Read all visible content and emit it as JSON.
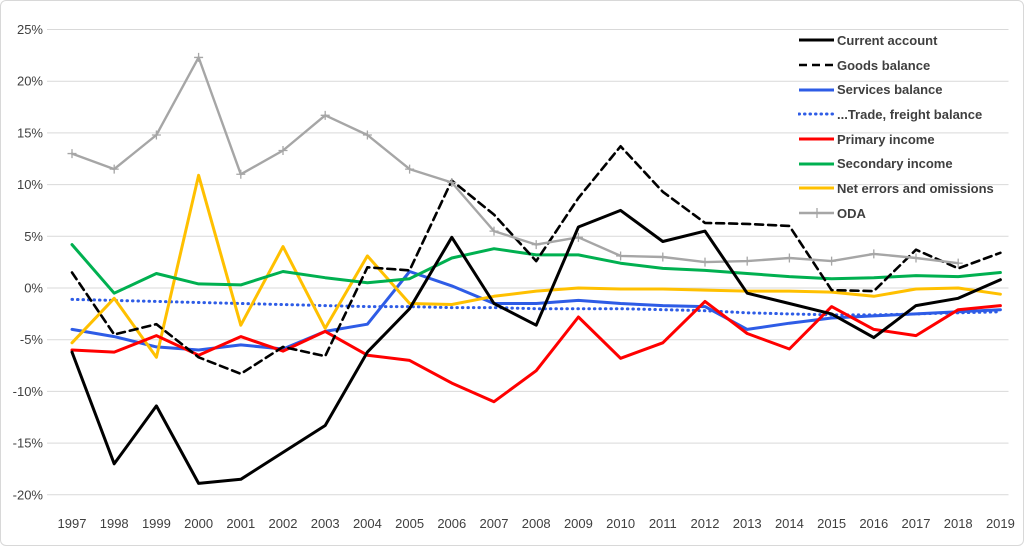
{
  "chart_data": {
    "type": "line",
    "title": "",
    "xlabel": "",
    "ylabel": "",
    "grid": true,
    "legend_position": "top-right",
    "ylim": [
      -20,
      25
    ],
    "y_tick_labels": [
      "25%",
      "20%",
      "15%",
      "10%",
      "5%",
      "0%",
      "-5%",
      "-10%",
      "-15%",
      "-20%"
    ],
    "y_tick_values": [
      25,
      20,
      15,
      10,
      5,
      0,
      -5,
      -10,
      -15,
      -20
    ],
    "x": [
      1997,
      1998,
      1999,
      2000,
      2001,
      2002,
      2003,
      2004,
      2005,
      2006,
      2007,
      2008,
      2009,
      2010,
      2011,
      2012,
      2013,
      2014,
      2015,
      2016,
      2017,
      2018,
      2019
    ],
    "series": [
      {
        "name": "Current account",
        "color": "#000000",
        "style": "solid",
        "width": 3,
        "marker": "none",
        "values": [
          -6.2,
          -17.0,
          -11.4,
          -18.9,
          -18.5,
          -15.9,
          -13.3,
          -6.2,
          -2.0,
          4.9,
          -1.5,
          -3.6,
          5.9,
          7.5,
          4.5,
          5.5,
          -0.5,
          -1.5,
          -2.5,
          -4.8,
          -1.7,
          -1.0,
          0.8
        ]
      },
      {
        "name": "Goods balance",
        "color": "#000000",
        "style": "dashed",
        "width": 2.6,
        "marker": "none",
        "values": [
          1.5,
          -4.5,
          -3.5,
          -6.7,
          -8.3,
          -5.7,
          -6.6,
          2.0,
          1.7,
          10.4,
          7.1,
          2.6,
          8.7,
          13.7,
          9.3,
          6.3,
          6.2,
          6.0,
          -0.2,
          -0.3,
          3.7,
          1.9,
          3.4
        ]
      },
      {
        "name": "Services balance",
        "color": "#2e5ce6",
        "style": "solid",
        "width": 3,
        "marker": "none",
        "values": [
          -4.0,
          -4.7,
          -5.7,
          -6.0,
          -5.5,
          -5.9,
          -4.2,
          -3.5,
          1.6,
          0.2,
          -1.5,
          -1.5,
          -1.2,
          -1.5,
          -1.7,
          -1.8,
          -4.0,
          -3.4,
          -2.9,
          -2.7,
          -2.5,
          -2.3,
          -2.1
        ]
      },
      {
        "name": "...Trade, freight balance",
        "color": "#2e5ce6",
        "style": "dotted",
        "width": 3,
        "marker": "none",
        "values": [
          -1.1,
          -1.2,
          -1.3,
          -1.4,
          -1.5,
          -1.6,
          -1.7,
          -1.8,
          -1.8,
          -1.9,
          -1.9,
          -2.0,
          -2.0,
          -2.0,
          -2.1,
          -2.2,
          -2.4,
          -2.5,
          -2.6,
          -2.6,
          -2.5,
          -2.4,
          -2.3
        ]
      },
      {
        "name": "Primary income",
        "color": "#ff0000",
        "style": "solid",
        "width": 3,
        "marker": "none",
        "values": [
          -6.0,
          -6.2,
          -4.6,
          -6.5,
          -4.7,
          -6.1,
          -4.2,
          -6.5,
          -7.0,
          -9.2,
          -11.0,
          -8.0,
          -2.8,
          -6.8,
          -5.3,
          -1.3,
          -4.4,
          -5.9,
          -1.8,
          -4.0,
          -4.6,
          -2.1,
          -1.7
        ]
      },
      {
        "name": "Secondary income",
        "color": "#00b050",
        "style": "solid",
        "width": 3,
        "marker": "none",
        "values": [
          4.2,
          -0.5,
          1.4,
          0.4,
          0.3,
          1.6,
          1.0,
          0.5,
          0.9,
          2.9,
          3.8,
          3.2,
          3.2,
          2.4,
          1.9,
          1.7,
          1.4,
          1.1,
          0.9,
          1.0,
          1.2,
          1.1,
          1.5
        ]
      },
      {
        "name": "Net errors and omissions",
        "color": "#ffc000",
        "style": "solid",
        "width": 3,
        "marker": "none",
        "values": [
          -5.3,
          -1.0,
          -6.7,
          10.9,
          -3.6,
          4.0,
          -3.9,
          3.1,
          -1.5,
          -1.6,
          -0.8,
          -0.3,
          0.0,
          -0.1,
          -0.1,
          -0.2,
          -0.3,
          -0.3,
          -0.4,
          -0.8,
          -0.1,
          0.0,
          -0.6
        ]
      },
      {
        "name": "ODA",
        "color": "#a6a6a6",
        "style": "solid",
        "width": 2.4,
        "marker": "plus",
        "values": [
          13.0,
          11.5,
          14.8,
          22.3,
          11.0,
          13.3,
          16.7,
          14.8,
          11.5,
          10.2,
          5.5,
          4.2,
          4.9,
          3.1,
          3.0,
          2.5,
          2.6,
          2.9,
          2.6,
          3.3,
          2.9,
          2.4,
          null
        ]
      }
    ]
  },
  "colors": {
    "grid": "#d9d9d9",
    "tick_text": "#404040",
    "legend_text": "#3f3f3f",
    "frame_border": "#d8d8d8"
  }
}
